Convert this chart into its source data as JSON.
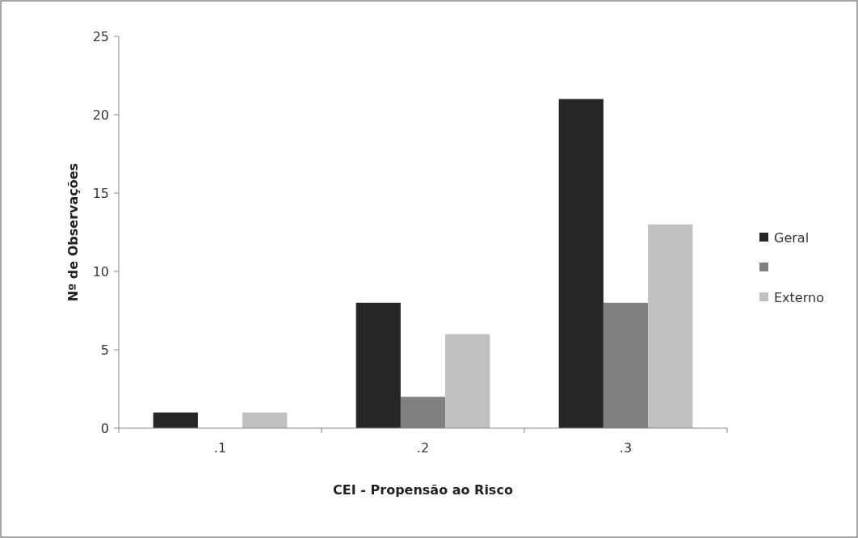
{
  "chart_data": {
    "type": "bar",
    "xlabel": "CEI - Propensão ao Risco",
    "ylabel": "Nº de Observações",
    "categories": [
      ".1",
      ".2",
      ".3"
    ],
    "series": [
      {
        "name": "Geral",
        "color": "#262626",
        "values": [
          1,
          8,
          21
        ]
      },
      {
        "color": "#808080",
        "values": [
          0,
          2,
          8
        ]
      },
      {
        "name": "Externo",
        "color": "#c0c0c0",
        "values": [
          1,
          6,
          13
        ]
      }
    ],
    "ylim": [
      0,
      25
    ],
    "yticks": [
      0,
      5,
      10,
      15,
      20,
      25
    ],
    "grid": false,
    "legend": "right"
  }
}
